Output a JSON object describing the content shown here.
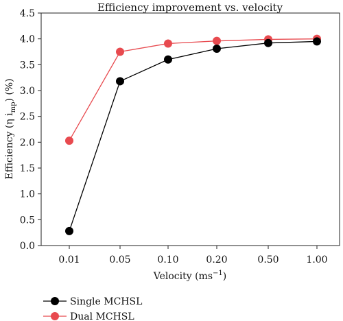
{
  "chart_data": {
    "type": "line",
    "title": "Efficiency improvement vs. velocity",
    "xlabel": "Velocity (ms",
    "xlabel_sup": "−1",
    "xlabel_end": ")",
    "ylabel": "Efficiency (η i",
    "ylabel_sub": "mp",
    "ylabel_end": ") (%)",
    "categories": [
      "0.01",
      "0.05",
      "0.10",
      "0.20",
      "0.50",
      "1.00"
    ],
    "ylim": [
      0.0,
      4.5
    ],
    "yticks": [
      "0.0",
      "0.5",
      "1.0",
      "1.5",
      "2.0",
      "2.5",
      "3.0",
      "3.5",
      "4.0",
      "4.5"
    ],
    "grid": false,
    "legend_position": "bottom-left, below plot",
    "series": [
      {
        "name": "Single MCHSL",
        "color": "#000000",
        "values": [
          0.28,
          3.18,
          3.6,
          3.81,
          3.92,
          3.95
        ]
      },
      {
        "name": "Dual MCHSL",
        "color": "#e84a4f",
        "values": [
          2.03,
          3.75,
          3.91,
          3.96,
          3.99,
          4.0
        ]
      }
    ]
  }
}
